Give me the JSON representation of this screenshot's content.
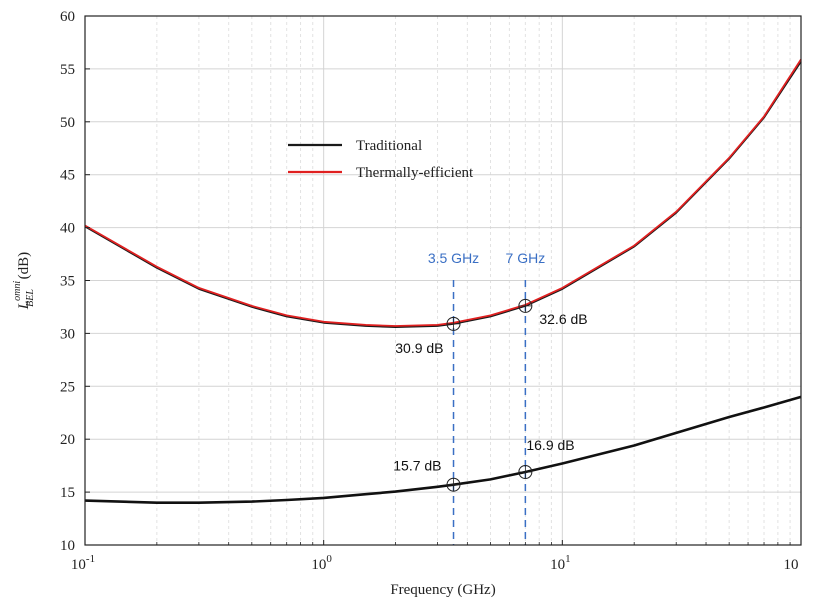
{
  "chart_data": {
    "type": "line",
    "title": "",
    "xlabel": "Frequency (GHz)",
    "ylabel": {
      "base": "L",
      "sup": "omni",
      "sub": "BEL",
      "unit": " (dB)"
    },
    "xscale": "log",
    "xlim": [
      0.1,
      100
    ],
    "ylim": [
      10,
      60
    ],
    "x_ticks": [
      {
        "base": "10",
        "exp": "-1"
      },
      {
        "base": "10",
        "exp": "0"
      },
      {
        "base": "10",
        "exp": "1"
      },
      {
        "base": "10",
        "exp": ""
      }
    ],
    "y_ticks": [
      "10",
      "15",
      "20",
      "25",
      "30",
      "35",
      "40",
      "45",
      "50",
      "55",
      "60"
    ],
    "grid": true,
    "legend_position": "upper-left-inside",
    "series": [
      {
        "name": "Traditional",
        "color": "#1a1a1a",
        "x": [
          0.1,
          0.2,
          0.3,
          0.5,
          0.7,
          1,
          1.5,
          2,
          3,
          3.5,
          5,
          7,
          10,
          20,
          30,
          50,
          70,
          100
        ],
        "y": [
          40.1,
          36.2,
          34.2,
          32.5,
          31.6,
          31.0,
          30.7,
          30.6,
          30.7,
          30.9,
          31.6,
          32.6,
          34.2,
          38.2,
          41.4,
          46.5,
          50.4,
          55.7
        ]
      },
      {
        "name": "Thermally-efficient",
        "color": "#e02020",
        "x": [
          0.1,
          0.2,
          0.3,
          0.5,
          0.7,
          1,
          1.5,
          2,
          3,
          3.5,
          5,
          7,
          10,
          20,
          30,
          50,
          70,
          100
        ],
        "y": [
          40.2,
          36.3,
          34.3,
          32.6,
          31.7,
          31.1,
          30.8,
          30.7,
          30.8,
          31.0,
          31.7,
          32.7,
          34.3,
          38.3,
          41.5,
          46.6,
          50.5,
          55.9
        ]
      },
      {
        "name": "",
        "color": "#111111",
        "x": [
          0.1,
          0.2,
          0.3,
          0.5,
          0.7,
          1,
          1.5,
          2,
          3,
          3.5,
          5,
          7,
          10,
          20,
          30,
          50,
          70,
          100
        ],
        "y": [
          14.2,
          14.0,
          14.0,
          14.1,
          14.25,
          14.45,
          14.8,
          15.05,
          15.5,
          15.7,
          16.2,
          16.9,
          17.7,
          19.4,
          20.6,
          22.1,
          23.0,
          24.0
        ]
      }
    ],
    "vlines": [
      {
        "x": 3.5,
        "label": "3.5 GHz",
        "color": "#3a6fc4"
      },
      {
        "x": 7,
        "label": "7 GHz",
        "color": "#3a6fc4"
      }
    ],
    "markers": [
      {
        "x": 3.5,
        "y": 30.9,
        "label": "30.9 dB",
        "label_anchor": "below-left"
      },
      {
        "x": 7,
        "y": 32.6,
        "label": "32.6 dB",
        "label_anchor": "right"
      },
      {
        "x": 3.5,
        "y": 15.7,
        "label": "15.7 dB",
        "label_anchor": "above-left"
      },
      {
        "x": 7,
        "y": 16.9,
        "label": "16.9 dB",
        "label_anchor": "above-right"
      }
    ]
  }
}
